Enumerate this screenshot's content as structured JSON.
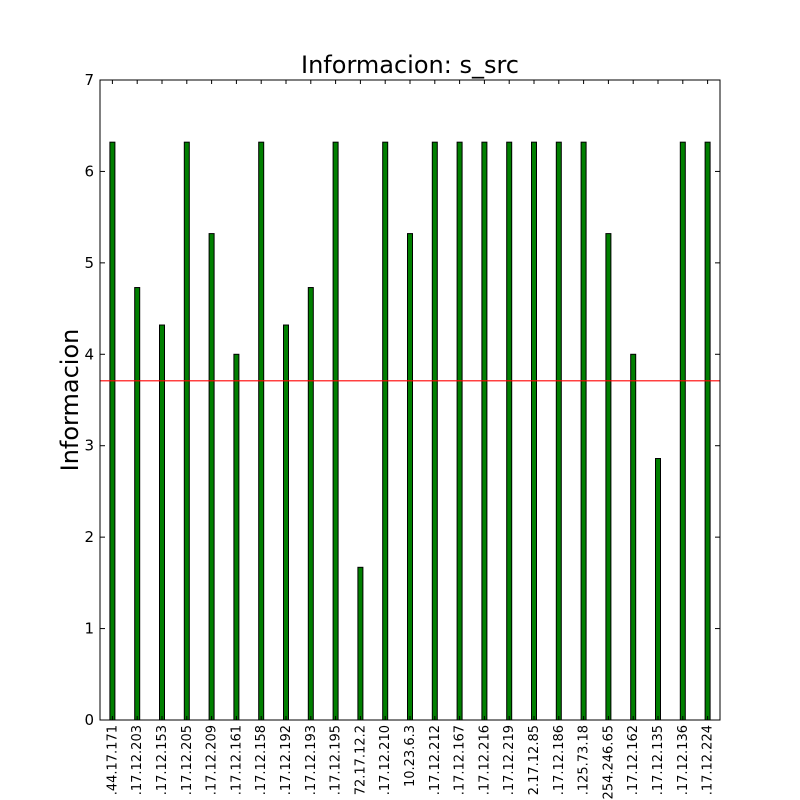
{
  "chart_data": {
    "type": "bar",
    "title": "Informacion: s_src",
    "xlabel": "",
    "ylabel": "Informacion",
    "ylim": [
      0,
      7
    ],
    "yticks": [
      0,
      1,
      2,
      3,
      4,
      5,
      6,
      7
    ],
    "grid": false,
    "legend": "none",
    "bar_color": "#007f00",
    "reference_line": {
      "value": 3.71,
      "color": "#ff0000"
    },
    "categories": [
      ".44.17.171",
      ".17.12.203",
      ".17.12.153",
      ".17.12.205",
      ".17.12.209",
      ".17.12.161",
      ".17.12.158",
      ".17.12.192",
      ".17.12.193",
      ".17.12.195",
      "72.17.12.2",
      ".17.12.210",
      "10.23.6.3",
      ".17.12.212",
      ".17.12.167",
      ".17.12.216",
      ".17.12.219",
      "2.17.12.85",
      ".17.12.186",
      ".125.73.18",
      "254.246.65",
      ".17.12.162",
      ".17.12.135",
      ".17.12.136",
      ".17.12.224"
    ],
    "values": [
      6.32,
      4.73,
      4.32,
      6.32,
      5.32,
      4.0,
      6.32,
      4.32,
      4.73,
      6.32,
      1.67,
      6.32,
      5.32,
      6.32,
      6.32,
      6.32,
      6.32,
      6.32,
      6.32,
      6.32,
      5.32,
      4.0,
      2.86,
      6.32,
      6.32
    ]
  }
}
